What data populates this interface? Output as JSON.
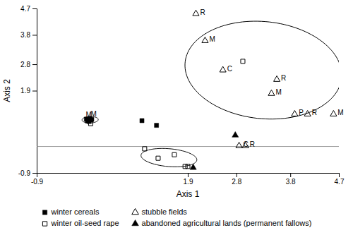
{
  "chart_data": {
    "type": "scatter",
    "xlabel": "Axis 1",
    "ylabel": "Axis 2",
    "xlim": [
      -0.9,
      4.7
    ],
    "ylim": [
      -0.9,
      4.7
    ],
    "xticks": [
      -0.9,
      1.9,
      2.8,
      3.8,
      4.7
    ],
    "yticks": [
      -0.9,
      1.9,
      2.8,
      3.8,
      4.7
    ],
    "grid": false,
    "legend": "bottom",
    "series": [
      {
        "name": "winter cereals",
        "marker": "square",
        "color": "black",
        "x": [
          0.02,
          0.05,
          0.08,
          0.1,
          0.07,
          0.12,
          0.04,
          0.09,
          1.05,
          1.32
        ],
        "values": [
          0.93,
          0.88,
          0.95,
          0.9,
          0.85,
          0.92,
          0.87,
          0.91,
          0.88,
          0.72
        ]
      },
      {
        "name": "winter oil-seed rape",
        "marker": "square-open",
        "color": "black",
        "x": [
          0.1,
          1.1,
          1.35,
          1.65,
          1.85,
          1.9,
          2.92
        ],
        "values": [
          0.78,
          -0.08,
          -0.4,
          -0.28,
          -0.68,
          -0.68,
          2.9
        ]
      },
      {
        "name": "stubble fields",
        "marker": "triangle-open",
        "color": "black",
        "x": [
          2.05,
          2.22,
          2.55,
          3.55,
          3.45,
          3.88,
          4.12,
          4.6,
          2.85,
          2.97
        ],
        "values": [
          4.52,
          3.6,
          2.6,
          2.28,
          1.8,
          1.1,
          1.1,
          1.1,
          0.02,
          0.02
        ],
        "point_labels": [
          "R",
          "M",
          "C",
          "R",
          "M",
          "P",
          "R",
          "M",
          "C",
          "R"
        ]
      },
      {
        "name": "abandoned agricultural lands (permanent fallows)",
        "marker": "triangle",
        "color": "black",
        "x": [
          2.78,
          2.0
        ],
        "values": [
          0.38,
          -0.72
        ]
      }
    ],
    "annotations": [
      {
        "x": 0.01,
        "y": 1.0,
        "text": "M"
      },
      {
        "x": 0.1,
        "y": 1.03,
        "text": "M"
      }
    ],
    "ellipses": [
      {
        "cx": 0.09,
        "cy": 0.91,
        "width": 0.3,
        "height": 0.22,
        "angle": 5
      },
      {
        "cx": 1.55,
        "cy": -0.38,
        "width": 1.05,
        "height": 0.6,
        "angle": -12
      },
      {
        "cx": 3.3,
        "cy": 2.6,
        "width": 2.85,
        "height": 3.38,
        "angle": 18
      }
    ],
    "hline": 0.0
  }
}
